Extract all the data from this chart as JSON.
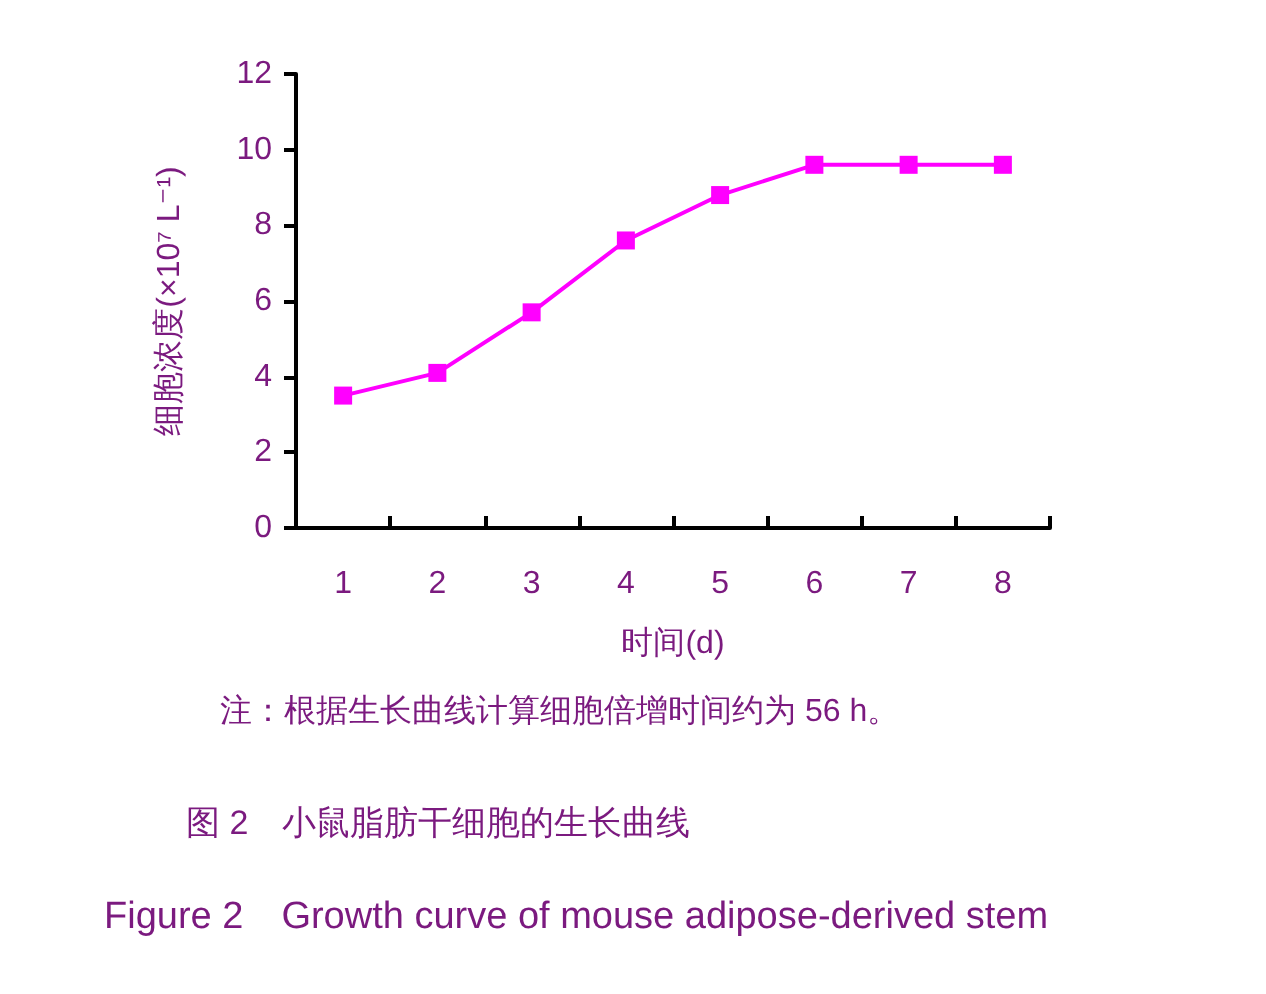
{
  "chart_data": {
    "type": "line",
    "title": "图 2　小鼠脂肪干细胞的生长曲线",
    "subtitle": "Figure 2　Growth curve of mouse adipose-derived stem",
    "xlabel": "时间(d)",
    "ylabel": "细胞浓度(×10⁷ L⁻¹)",
    "annotations": [
      "注：根据生长曲线计算细胞倍增时间约为 56 h。"
    ],
    "categories": [
      "1",
      "2",
      "3",
      "4",
      "5",
      "6",
      "7",
      "8"
    ],
    "series": [
      {
        "color": "#ff00ff",
        "values": [
          3.5,
          4.1,
          5.7,
          7.6,
          8.8,
          9.6,
          9.6,
          9.6
        ]
      }
    ],
    "ylim": [
      0,
      12
    ],
    "yticks": [
      0,
      2,
      4,
      6,
      8,
      10,
      12
    ],
    "marker": "square",
    "line_style": "solid",
    "grid": false
  }
}
